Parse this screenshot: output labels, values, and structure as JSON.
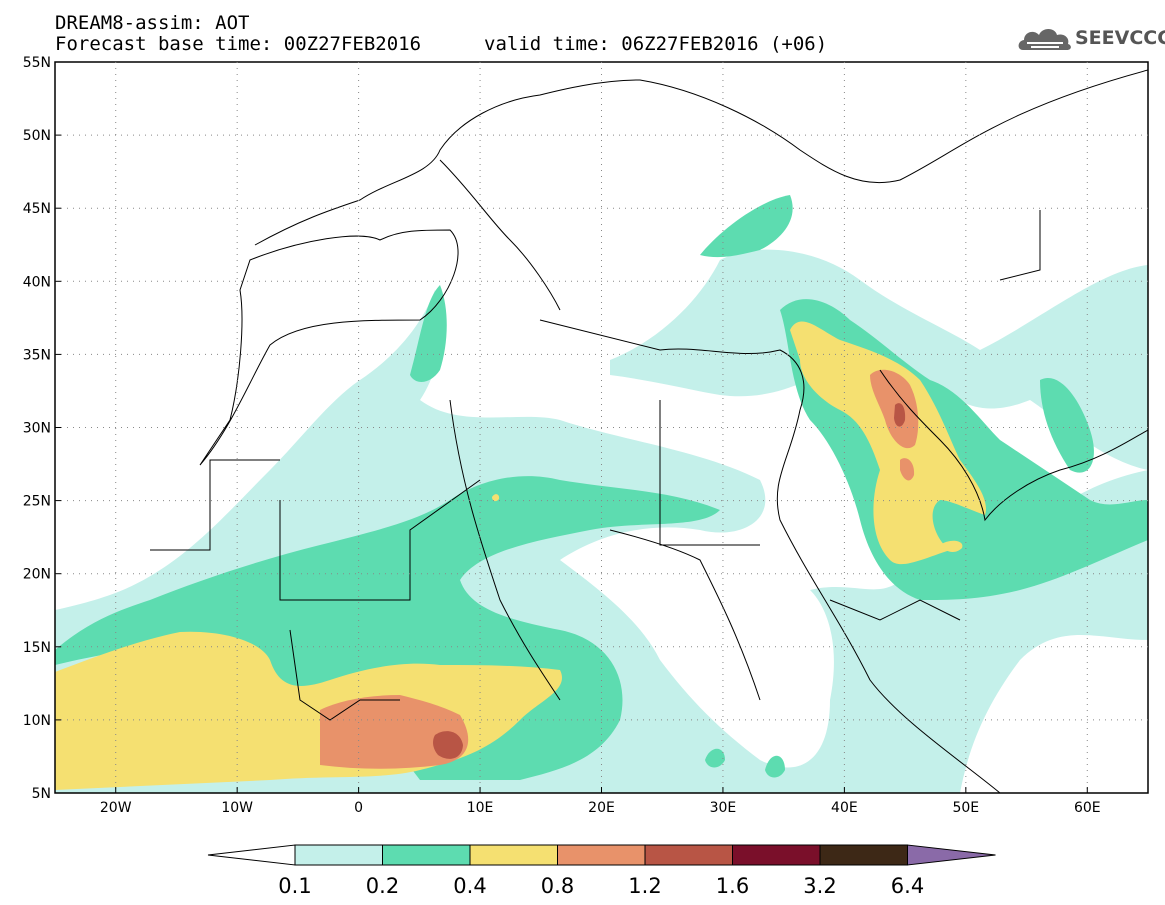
{
  "header": {
    "line1": "DREAM8-assim: AOT",
    "base_time": "Forecast base time: 00Z27FEB2016",
    "valid_time": "valid time: 06Z27FEB2016 (+06)"
  },
  "logo": {
    "icon": "cloud-icon",
    "text": "SEEVCCC"
  },
  "map": {
    "lat_labels": [
      "55N",
      "50N",
      "45N",
      "40N",
      "35N",
      "30N",
      "25N",
      "20N",
      "15N",
      "10N",
      "5N"
    ],
    "lon_labels": [
      "20W",
      "10W",
      "0",
      "10E",
      "20E",
      "30E",
      "40E",
      "50E",
      "60E"
    ],
    "extent": {
      "lon_min": -25,
      "lon_max": 65,
      "lat_min": 5,
      "lat_max": 55
    }
  },
  "colorbar": {
    "ticks": [
      "0.1",
      "0.2",
      "0.4",
      "0.8",
      "1.2",
      "1.6",
      "3.2",
      "6.4"
    ],
    "colors": [
      "#ffffff",
      "#c4f0ea",
      "#5ddcb0",
      "#f5e071",
      "#e8926a",
      "#b85545",
      "#7a0f2a",
      "#3d2816",
      "#8a6aa8"
    ]
  },
  "colors": {
    "c01": "#c4f0ea",
    "c02": "#5ddcb0",
    "c04": "#f5e071",
    "c08": "#e8926a",
    "c12": "#b85545",
    "c16": "#7a0f2a"
  }
}
